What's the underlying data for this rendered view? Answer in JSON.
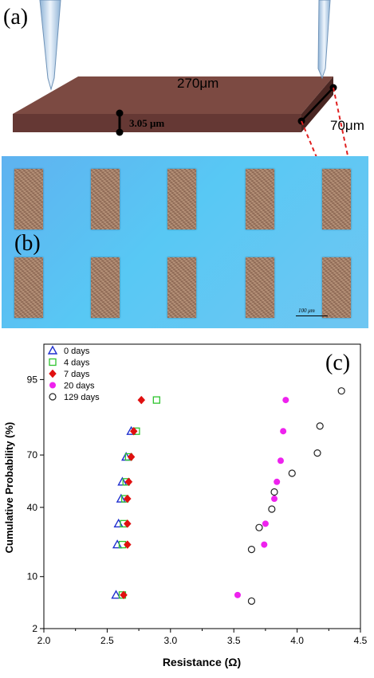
{
  "panel_a": {
    "label": "(a)",
    "length_label": "270μm",
    "thickness_label": "3.05 μm",
    "width_label": "70μm",
    "colors": {
      "bar_top": "#7c4a42",
      "bar_front": "#653834",
      "bar_side": "#4a2622",
      "probe": "#c8dcef",
      "zoom_line": "#e02020"
    }
  },
  "panel_b": {
    "label": "(b)",
    "scale_bar": "100 μm",
    "colors": {
      "substrate": "#5ec0f2",
      "pad": "#a88570"
    }
  },
  "chart_data": {
    "type": "scatter",
    "panel_label": "(c)",
    "xlabel": "Resistance (Ω)",
    "ylabel": "Cumulative Probability (%)",
    "xlim": [
      2.0,
      4.5
    ],
    "xticks": [
      "2.0",
      "2.5",
      "3.0",
      "3.5",
      "4.0",
      "4.5"
    ],
    "yticks": [
      "2",
      "10",
      "40",
      "70",
      "95"
    ],
    "y_scale": "probability",
    "legend_position": "top-left",
    "series": [
      {
        "name": "0    days",
        "marker": "triangle-open",
        "color": "#1f2fcf",
        "points": [
          [
            2.57,
            6
          ],
          [
            2.58,
            21
          ],
          [
            2.59,
            31
          ],
          [
            2.61,
            45
          ],
          [
            2.62,
            55
          ],
          [
            2.65,
            69
          ],
          [
            2.69,
            81
          ]
        ]
      },
      {
        "name": "4    days",
        "marker": "square-open",
        "color": "#2ec42e",
        "points": [
          [
            2.62,
            6
          ],
          [
            2.62,
            21
          ],
          [
            2.63,
            31
          ],
          [
            2.64,
            45
          ],
          [
            2.65,
            55
          ],
          [
            2.67,
            69
          ],
          [
            2.73,
            81
          ],
          [
            2.89,
            91
          ]
        ]
      },
      {
        "name": "7    days",
        "marker": "diamond-filled",
        "color": "#e01010",
        "points": [
          [
            2.63,
            6
          ],
          [
            2.66,
            21
          ],
          [
            2.66,
            31
          ],
          [
            2.66,
            45
          ],
          [
            2.67,
            55
          ],
          [
            2.69,
            69
          ],
          [
            2.71,
            81
          ],
          [
            2.77,
            91
          ]
        ]
      },
      {
        "name": "20   days",
        "marker": "circle-filled",
        "color": "#ee22ee",
        "points": [
          [
            3.53,
            6
          ],
          [
            3.74,
            21
          ],
          [
            3.75,
            31
          ],
          [
            3.82,
            45
          ],
          [
            3.84,
            55
          ],
          [
            3.87,
            67
          ],
          [
            3.89,
            81
          ],
          [
            3.91,
            91
          ]
        ]
      },
      {
        "name": "129 days",
        "marker": "circle-open",
        "color": "#222222",
        "points": [
          [
            3.64,
            5
          ],
          [
            3.64,
            19
          ],
          [
            3.7,
            29
          ],
          [
            3.8,
            39
          ],
          [
            3.82,
            49
          ],
          [
            3.96,
            60
          ],
          [
            4.16,
            71
          ],
          [
            4.18,
            83
          ],
          [
            4.35,
            93
          ]
        ]
      }
    ]
  }
}
